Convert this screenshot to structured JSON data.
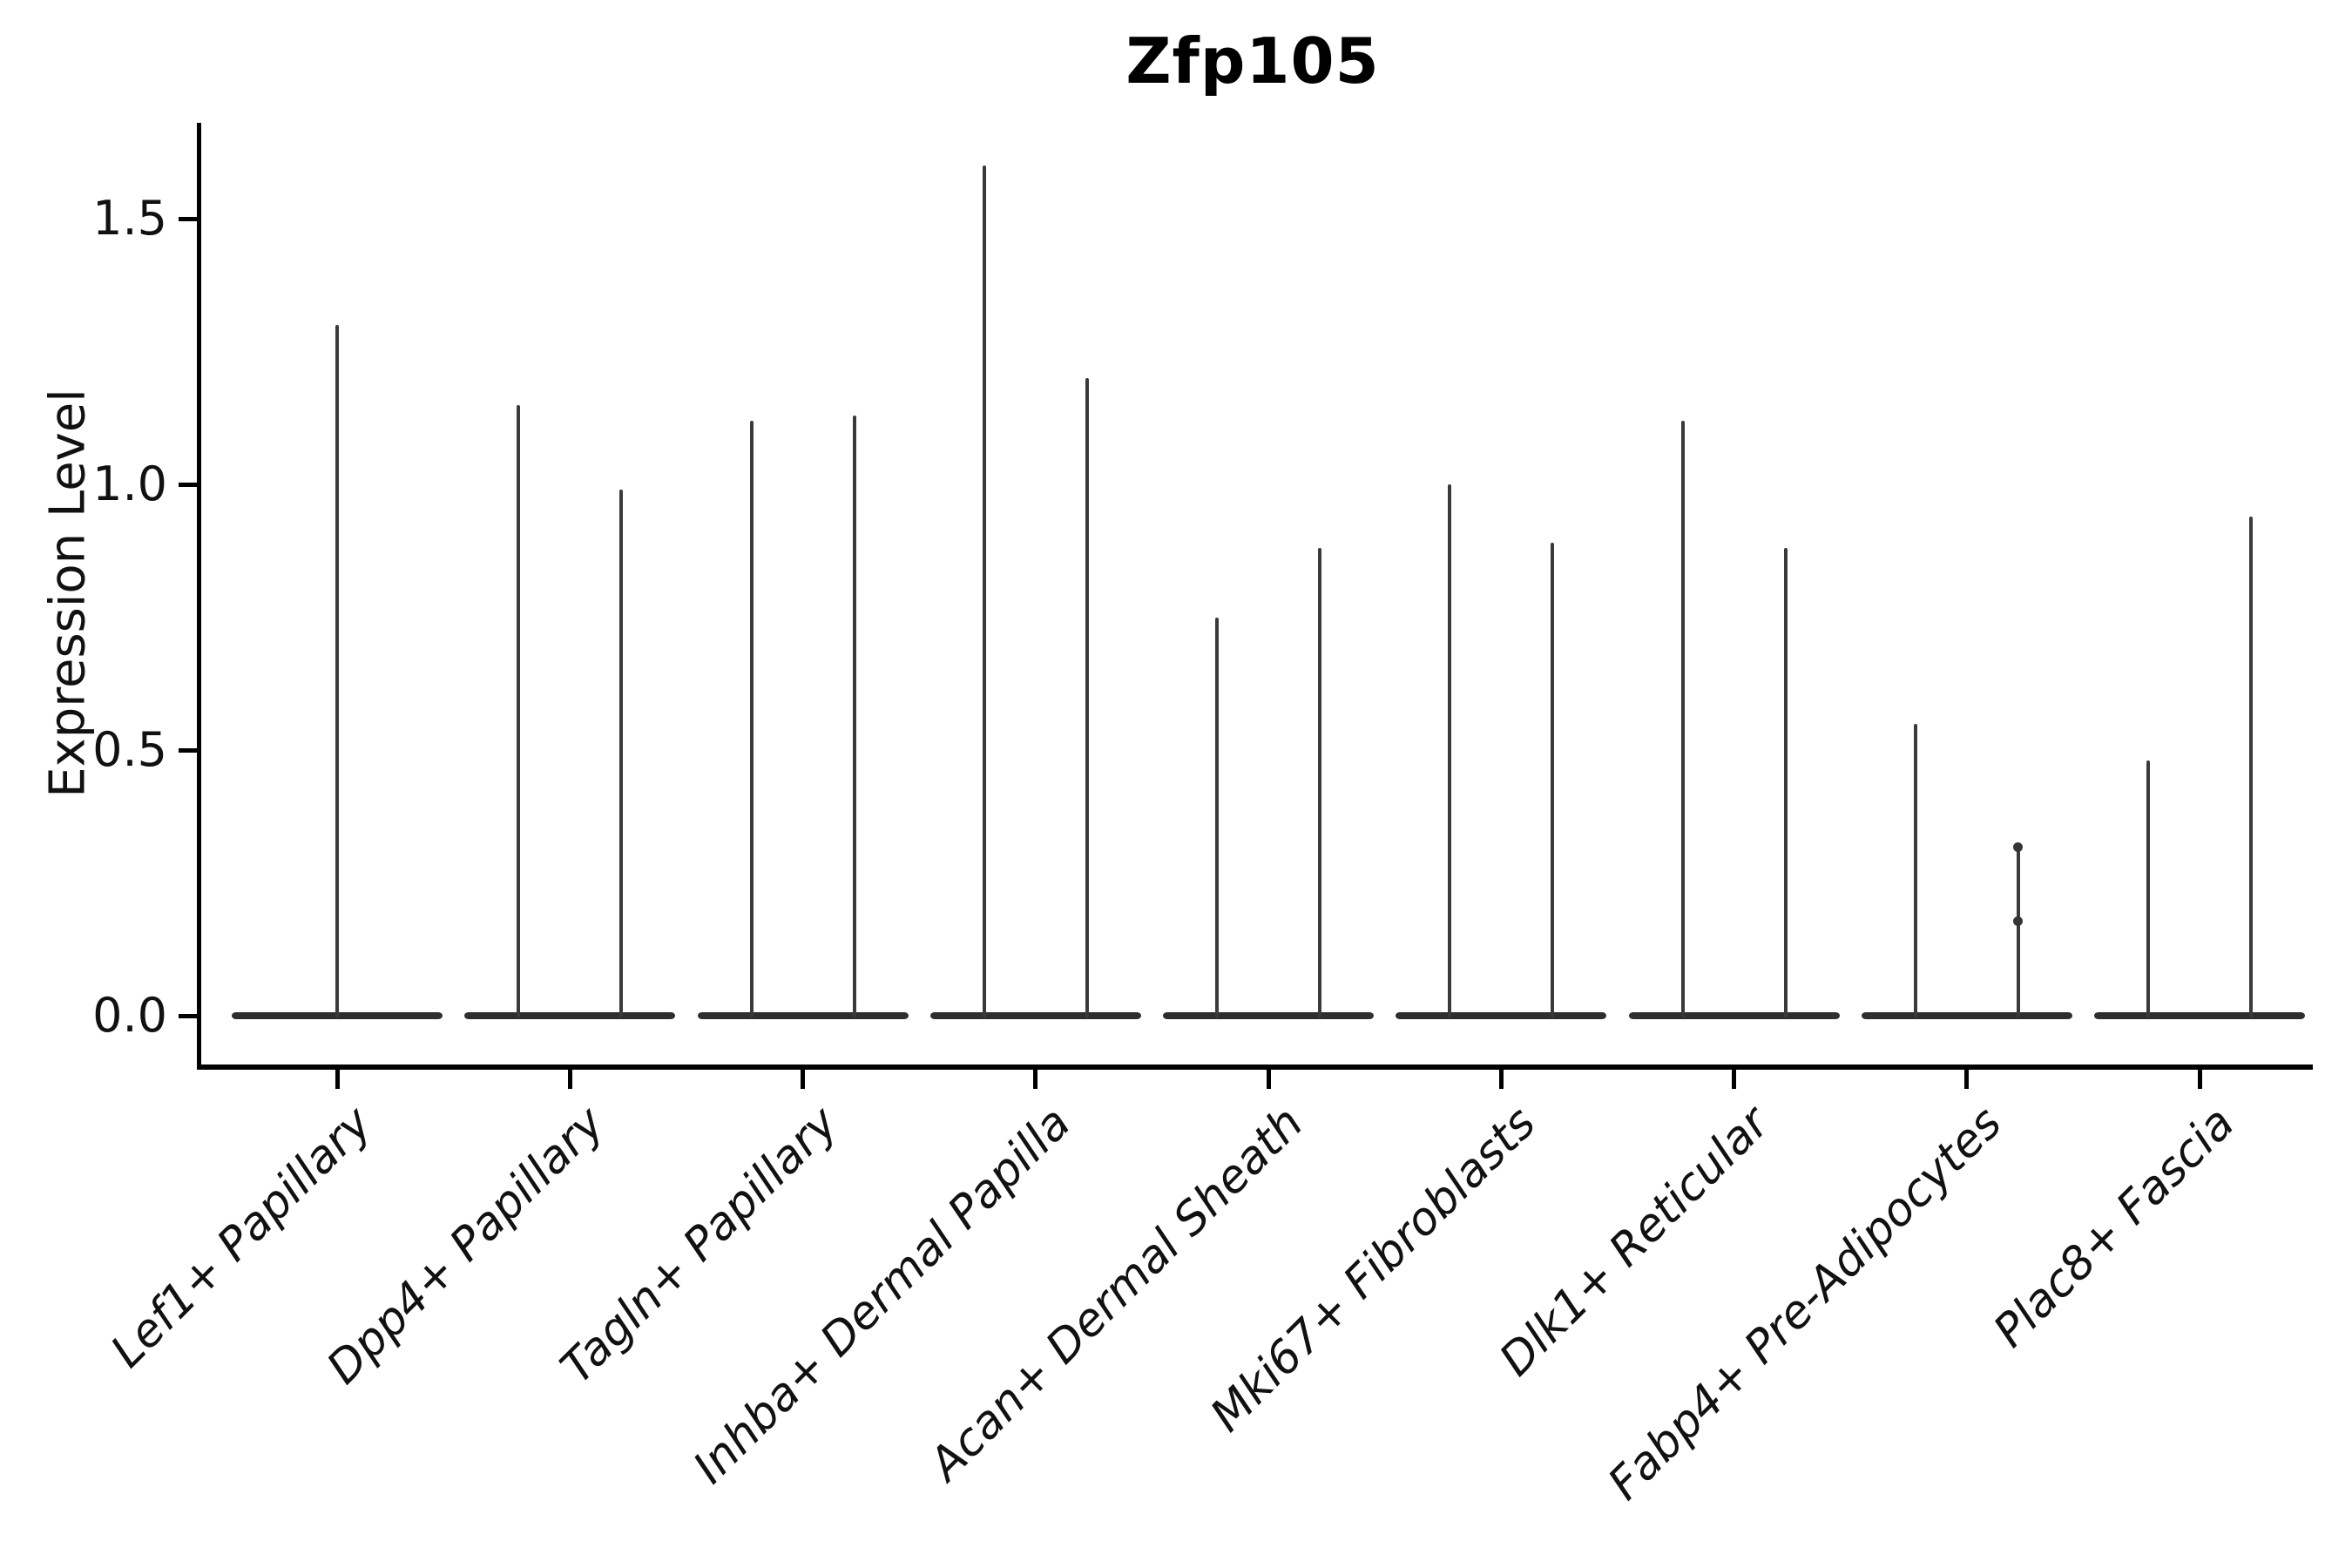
{
  "figure": {
    "title": "Zfp105"
  },
  "y_axis": {
    "label": "Expression Level",
    "tick_labels": [
      "0.0",
      "0.5",
      "1.0",
      "1.5"
    ]
  },
  "chart_data": {
    "type": "violin",
    "title": "Zfp105",
    "xlabel": "",
    "ylabel": "Expression Level",
    "ylim": [
      -0.09,
      1.68
    ],
    "yticks": [
      0.0,
      0.5,
      1.0,
      1.5
    ],
    "grid": false,
    "legend": "none",
    "style": "sparse expression violins: wide flat density bar at 0 with thin vertical density spikes reaching the maximum expression value",
    "categories": [
      "Lef1+ Papillary",
      "Dpp4+ Papillary",
      "Tagln+ Papillary",
      "Inhba+ Dermal Papilla",
      "Acan+ Dermal Sheath",
      "Mki67+ Fibroblasts",
      "Dlk1+ Reticular",
      "Fabp4+ Pre-Adipocytes",
      "Plac8+ Fascia"
    ],
    "violins": [
      {
        "category": "Lef1+ Papillary",
        "spikes": [
          {
            "position": "center",
            "value": 1.3
          }
        ]
      },
      {
        "category": "Dpp4+ Papillary",
        "spikes": [
          {
            "position": "left",
            "value": 1.15
          },
          {
            "position": "right",
            "value": 0.99
          }
        ]
      },
      {
        "category": "Tagln+ Papillary",
        "spikes": [
          {
            "position": "left",
            "value": 1.12
          },
          {
            "position": "right",
            "value": 1.13
          }
        ]
      },
      {
        "category": "Inhba+ Dermal Papilla",
        "spikes": [
          {
            "position": "left",
            "value": 1.6
          },
          {
            "position": "right",
            "value": 1.2
          }
        ]
      },
      {
        "category": "Acan+ Dermal Sheath",
        "spikes": [
          {
            "position": "left",
            "value": 0.75
          },
          {
            "position": "right",
            "value": 0.88
          }
        ]
      },
      {
        "category": "Mki67+ Fibroblasts",
        "spikes": [
          {
            "position": "left",
            "value": 1.0
          },
          {
            "position": "right",
            "value": 0.89
          }
        ]
      },
      {
        "category": "Dlk1+ Reticular",
        "spikes": [
          {
            "position": "left",
            "value": 1.12
          },
          {
            "position": "right",
            "value": 0.88
          }
        ]
      },
      {
        "category": "Fabp4+ Pre-Adipocytes",
        "spikes": [
          {
            "position": "left",
            "value": 0.55
          },
          {
            "position": "right",
            "value": 0.32,
            "markers": [
              0.32,
              0.18
            ]
          }
        ]
      },
      {
        "category": "Plac8+ Fascia",
        "spikes": [
          {
            "position": "left",
            "value": 0.48
          },
          {
            "position": "right",
            "value": 0.94
          }
        ]
      }
    ],
    "colors": {
      "violin": "#3a3a3a",
      "violin_base": "#2e2e2e",
      "axis": "#000000",
      "text": "#111111",
      "background": "#ffffff"
    }
  }
}
